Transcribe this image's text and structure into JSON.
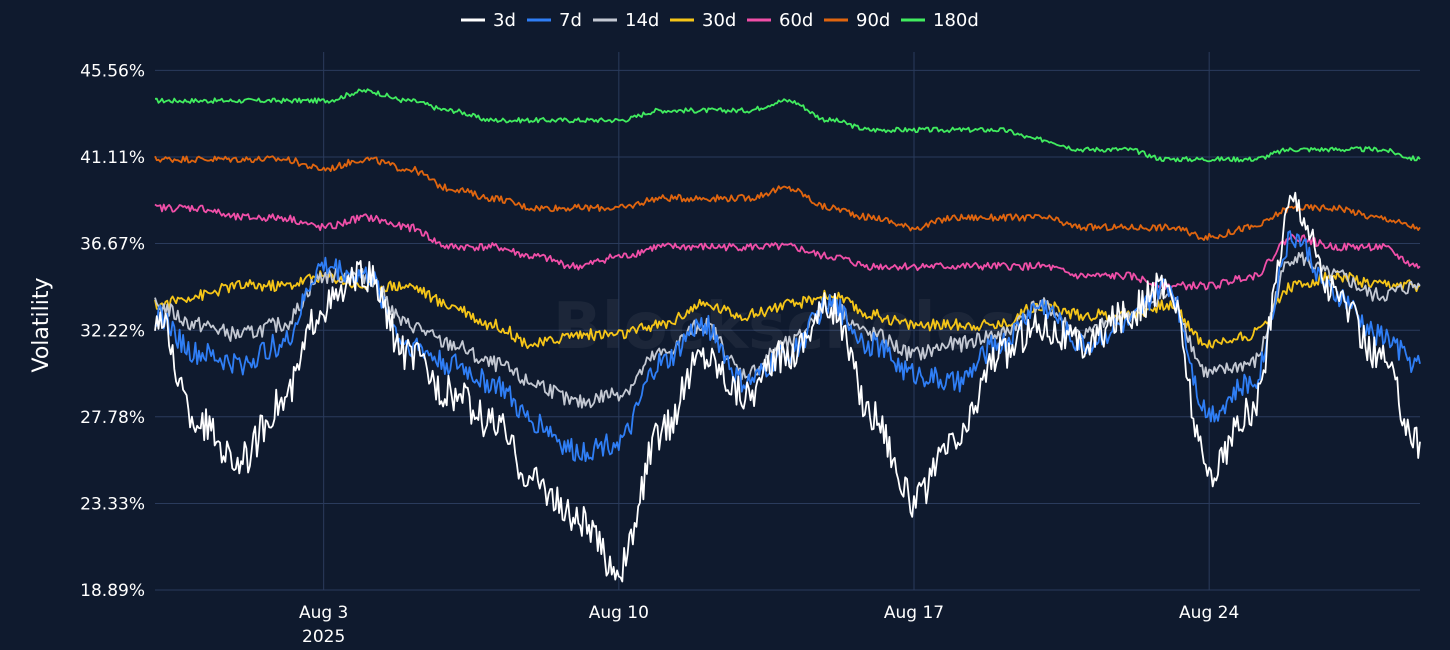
{
  "chart_data": {
    "type": "line",
    "title": "",
    "xlabel": "",
    "ylabel": "Volatility",
    "watermark": "Blockscholes",
    "legend_position": "top-center",
    "grid": true,
    "ylim": [
      18.89,
      46.5
    ],
    "y_ticks": [
      "18.89%",
      "23.33%",
      "27.78%",
      "32.22%",
      "36.67%",
      "41.11%",
      "45.56%"
    ],
    "y_tick_values": [
      18.89,
      23.33,
      27.78,
      32.22,
      36.67,
      41.11,
      45.56
    ],
    "x_range": [
      "2025-07-30",
      "2025-08-29"
    ],
    "x_ticks": [
      {
        "label": "Aug 3",
        "sublabel": "2025",
        "date": "2025-08-03"
      },
      {
        "label": "Aug 10",
        "sublabel": "",
        "date": "2025-08-10"
      },
      {
        "label": "Aug 17",
        "sublabel": "",
        "date": "2025-08-17"
      },
      {
        "label": "Aug 24",
        "sublabel": "",
        "date": "2025-08-24"
      }
    ],
    "x": [
      "2025-07-30",
      "2025-07-31",
      "2025-08-01",
      "2025-08-02",
      "2025-08-03",
      "2025-08-04",
      "2025-08-05",
      "2025-08-06",
      "2025-08-07",
      "2025-08-08",
      "2025-08-09",
      "2025-08-10",
      "2025-08-11",
      "2025-08-12",
      "2025-08-13",
      "2025-08-14",
      "2025-08-15",
      "2025-08-16",
      "2025-08-17",
      "2025-08-18",
      "2025-08-19",
      "2025-08-20",
      "2025-08-21",
      "2025-08-22",
      "2025-08-23",
      "2025-08-24",
      "2025-08-25",
      "2025-08-26",
      "2025-08-27",
      "2025-08-28",
      "2025-08-29"
    ],
    "series": [
      {
        "name": "3d",
        "color": "#ffffff",
        "values": [
          33.0,
          27.5,
          25.5,
          28.5,
          33.5,
          35.0,
          31.0,
          29.0,
          27.5,
          24.5,
          22.5,
          20.0,
          27.0,
          31.0,
          29.0,
          31.0,
          33.5,
          28.0,
          23.5,
          26.5,
          31.0,
          32.5,
          31.5,
          33.0,
          34.5,
          25.0,
          28.0,
          39.0,
          34.0,
          31.0,
          26.5
        ]
      },
      {
        "name": "7d",
        "color": "#2f7ef5",
        "values": [
          33.0,
          31.0,
          30.5,
          31.5,
          35.5,
          35.0,
          31.5,
          30.5,
          29.5,
          27.5,
          26.0,
          26.5,
          30.5,
          32.5,
          29.5,
          31.0,
          33.5,
          31.5,
          30.0,
          29.5,
          31.5,
          33.5,
          31.5,
          32.5,
          34.5,
          28.0,
          29.5,
          37.0,
          34.0,
          32.0,
          30.5
        ]
      },
      {
        "name": "14d",
        "color": "#c3c8d2",
        "values": [
          33.5,
          32.5,
          32.0,
          32.5,
          35.0,
          35.0,
          32.5,
          31.5,
          30.5,
          29.5,
          28.5,
          29.0,
          31.0,
          32.5,
          30.0,
          31.5,
          33.5,
          32.0,
          31.0,
          31.5,
          32.0,
          33.5,
          32.0,
          33.0,
          34.0,
          30.0,
          30.5,
          36.0,
          35.0,
          34.0,
          34.5
        ]
      },
      {
        "name": "30d",
        "color": "#f5c518",
        "values": [
          33.5,
          34.0,
          34.5,
          34.5,
          35.0,
          34.5,
          34.5,
          33.5,
          32.5,
          31.5,
          32.0,
          32.0,
          32.5,
          33.5,
          33.0,
          33.5,
          34.0,
          33.0,
          32.5,
          32.5,
          32.5,
          33.5,
          33.0,
          33.0,
          33.5,
          31.5,
          32.0,
          34.5,
          35.0,
          34.5,
          34.5
        ]
      },
      {
        "name": "60d",
        "color": "#f04fa8",
        "values": [
          38.5,
          38.5,
          38.0,
          38.0,
          37.5,
          38.0,
          37.5,
          36.5,
          36.5,
          36.0,
          35.5,
          36.0,
          36.5,
          36.5,
          36.5,
          36.5,
          36.0,
          35.5,
          35.5,
          35.5,
          35.5,
          35.5,
          35.0,
          35.0,
          34.5,
          34.5,
          35.0,
          37.0,
          36.5,
          36.5,
          35.5
        ]
      },
      {
        "name": "90d",
        "color": "#e0650f",
        "values": [
          41.0,
          41.0,
          41.0,
          41.0,
          40.5,
          41.0,
          40.5,
          39.5,
          39.0,
          38.5,
          38.5,
          38.5,
          39.0,
          39.0,
          39.0,
          39.5,
          38.5,
          38.0,
          37.5,
          38.0,
          38.0,
          38.0,
          37.5,
          37.5,
          37.5,
          37.0,
          37.5,
          38.5,
          38.5,
          38.0,
          37.5
        ]
      },
      {
        "name": "180d",
        "color": "#41ec5f",
        "values": [
          44.0,
          44.0,
          44.0,
          44.0,
          44.0,
          44.5,
          44.0,
          43.5,
          43.0,
          43.0,
          43.0,
          43.0,
          43.5,
          43.5,
          43.5,
          44.0,
          43.0,
          42.5,
          42.5,
          42.5,
          42.5,
          42.0,
          41.5,
          41.5,
          41.0,
          41.0,
          41.0,
          41.5,
          41.5,
          41.5,
          41.0
        ]
      }
    ]
  }
}
